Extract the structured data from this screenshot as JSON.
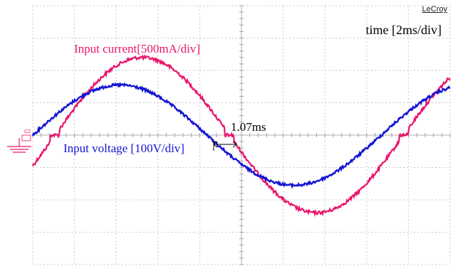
{
  "brand": "LeCroy",
  "ground_marker": "C2",
  "annotations": {
    "timebase": "time [2ms/div]",
    "current_label": "Input current[500mA/div]",
    "voltage_label": "Input voltage [100V/div]",
    "delay_label": "1.07ms"
  },
  "chart_data": {
    "type": "line",
    "title": "",
    "xlabel": "",
    "ylabel": "",
    "x_unit": "ms",
    "x_range": [
      0,
      20
    ],
    "y_range_divisions": [
      -4,
      4
    ],
    "divisions": {
      "x": 10,
      "y": 8
    },
    "grid": true,
    "delay_ms": 1.07,
    "series": [
      {
        "name": "Input current[500mA/div]",
        "color": "#e8156c",
        "scale": "500mA/div",
        "waveform": "sine-with-zero-crossing-dead-zone",
        "period_ms": 16.7,
        "phase_shift_ms": 1.07,
        "amplitude_div": 2.4,
        "dead_zone_div": 0.2,
        "noise_div": 0.05
      },
      {
        "name": "Input voltage [100V/div]",
        "color": "#1414d2",
        "scale": "100V/div",
        "waveform": "sine",
        "period_ms": 16.7,
        "phase_shift_ms": 0,
        "amplitude_div": 1.55,
        "noise_div": 0.04
      }
    ]
  }
}
